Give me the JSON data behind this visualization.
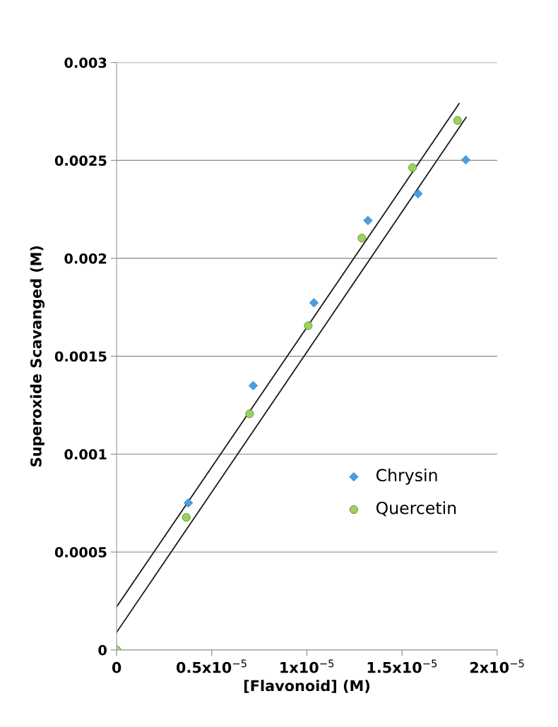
{
  "chart_data": {
    "type": "scatter",
    "xlabel": "[Flavonoid] (M)",
    "ylabel": "Superoxide Scavanged (M)",
    "xlim": [
      0,
      2e-05
    ],
    "ylim": [
      0,
      0.003
    ],
    "xticks": [
      0,
      {
        "value": 5e-06,
        "label": "0.5x10$^{−5}$"
      },
      {
        "value": 1e-05,
        "label": "1x10$^{−5}$"
      },
      {
        "value": 1.5e-05,
        "label": "1.5x10$^{−5}$"
      },
      {
        "value": 2e-05,
        "label": "2x10$^{−5}$"
      }
    ],
    "yticks": [
      0,
      0.0005,
      0.001,
      0.0015,
      0.002,
      0.0025,
      0.003
    ],
    "grid": "y",
    "legend": "right",
    "series": [
      {
        "name": "Chrysin",
        "marker": "diamond",
        "color": "#4a9fe0",
        "x": [
          0,
          3.77e-06,
          7.18e-06,
          1.037e-05,
          1.321e-05,
          1.584e-05,
          1.835e-05
        ],
        "values": [
          0,
          0.000751,
          0.00135,
          0.001773,
          0.002193,
          0.00233,
          0.002503
        ]
      },
      {
        "name": "Quercetin",
        "marker": "circle",
        "color": "#99d45a",
        "x": [
          0,
          3.66e-06,
          6.99e-06,
          1.007e-05,
          1.289e-05,
          1.555e-05,
          1.792e-05
        ],
        "values": [
          0,
          0.000677,
          0.001206,
          0.001656,
          0.002103,
          0.002463,
          0.002704
        ]
      },
      {
        "type": "line",
        "marker": "none",
        "line_style": "solid",
        "color": "#1a1a1a",
        "x": [
          0,
          1.837e-05
        ],
        "values": [
          9e-05,
          0.00272
        ]
      },
      {
        "type": "line",
        "marker": "none",
        "line_style": "solid",
        "color": "#1a1a1a",
        "x": [
          0,
          1.8e-05
        ],
        "values": [
          0.00022,
          0.00279
        ]
      }
    ]
  }
}
